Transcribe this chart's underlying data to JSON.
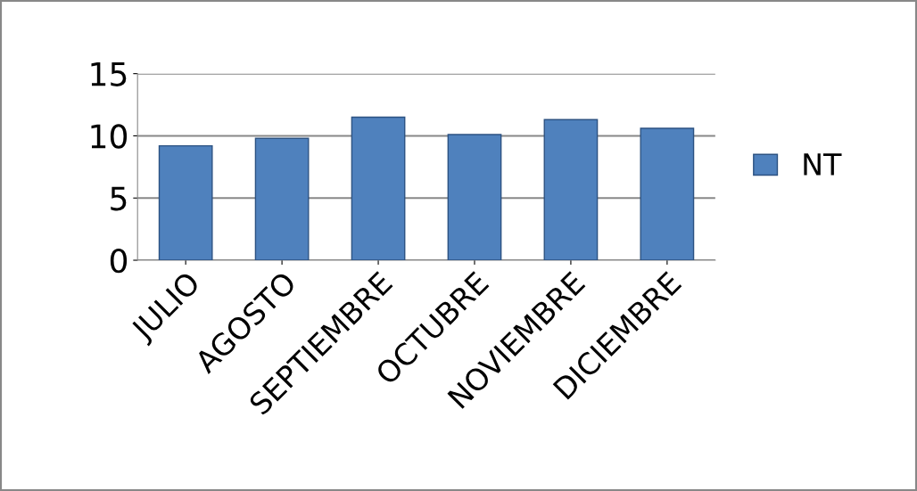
{
  "chart_data": {
    "type": "bar",
    "categories": [
      "JULIO",
      "AGOSTO",
      "SEPTIEMBRE",
      "OCTUBRE",
      "NOVIEMBRE",
      "DICIEMBRE"
    ],
    "series": [
      {
        "name": "NT",
        "color": "#4f81bd",
        "values": [
          9.2,
          9.8,
          11.5,
          10.1,
          11.3,
          10.6
        ]
      }
    ],
    "ylim": [
      0,
      15
    ],
    "yticks": [
      0,
      5,
      10,
      15
    ],
    "grid": "y",
    "legend": "right"
  }
}
